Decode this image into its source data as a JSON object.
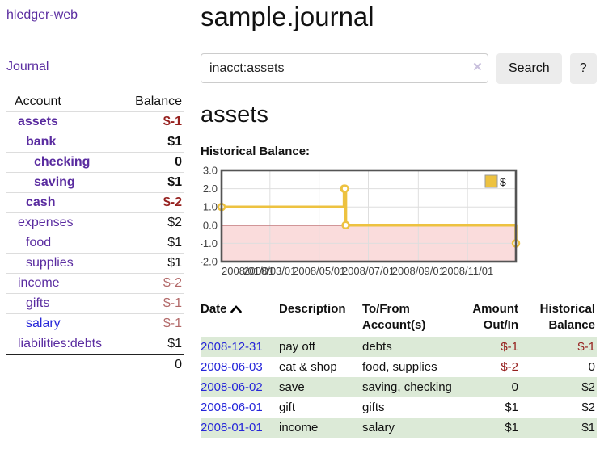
{
  "sidebar": {
    "brand": "hledger-web",
    "nav": [
      {
        "label": "Journal"
      }
    ],
    "accounts_table": {
      "headers": [
        "Account",
        "Balance"
      ],
      "rows": [
        {
          "name": "assets",
          "depth": 1,
          "bold": true,
          "link_color": "purple",
          "balance": "$-1",
          "balance_class": "dark-red"
        },
        {
          "name": "bank",
          "depth": 2,
          "bold": true,
          "link_color": "purple",
          "balance": "$1",
          "balance_class": "black"
        },
        {
          "name": "checking",
          "depth": 3,
          "bold": true,
          "link_color": "purple",
          "balance": "0",
          "balance_class": "black"
        },
        {
          "name": "saving",
          "depth": 3,
          "bold": true,
          "link_color": "purple",
          "balance": "$1",
          "balance_class": "black"
        },
        {
          "name": "cash",
          "depth": 2,
          "bold": true,
          "link_color": "purple",
          "balance": "$-2",
          "balance_class": "dark-red"
        },
        {
          "name": "expenses",
          "depth": 1,
          "bold": false,
          "link_color": "purple",
          "balance": "$2",
          "balance_class": "black"
        },
        {
          "name": "food",
          "depth": 2,
          "bold": false,
          "link_color": "purple",
          "balance": "$1",
          "balance_class": "black"
        },
        {
          "name": "supplies",
          "depth": 2,
          "bold": false,
          "link_color": "purple",
          "balance": "$1",
          "balance_class": "black"
        },
        {
          "name": "income",
          "depth": 1,
          "bold": false,
          "link_color": "purple",
          "balance": "$-2",
          "balance_class": "soft-red"
        },
        {
          "name": "gifts",
          "depth": 2,
          "bold": false,
          "link_color": "purple",
          "balance": "$-1",
          "balance_class": "soft-red"
        },
        {
          "name": "salary",
          "depth": 2,
          "bold": false,
          "link_color": "blue",
          "balance": "$-1",
          "balance_class": "soft-red"
        },
        {
          "name": "liabilities:debts",
          "depth": 1,
          "bold": false,
          "link_color": "purple",
          "balance": "$1",
          "balance_class": "black"
        }
      ],
      "total": "0"
    }
  },
  "header": {
    "title": "sample.journal"
  },
  "search": {
    "value": "inacct:assets",
    "clear_icon": "×",
    "button_label": "Search",
    "help_label": "?"
  },
  "account_page": {
    "heading": "assets",
    "chart_label": "Historical Balance:"
  },
  "chart_data": {
    "type": "line",
    "style": "steps",
    "title": "Historical Balance:",
    "series": [
      {
        "name": "$",
        "color": "#edc240",
        "points": [
          [
            "2008-01-01",
            1
          ],
          [
            "2008-06-01",
            2
          ],
          [
            "2008-06-02",
            2
          ],
          [
            "2008-06-03",
            0
          ],
          [
            "2008-12-31",
            -1
          ]
        ]
      }
    ],
    "xrange": [
      "2008-01-01",
      "2008-12-31"
    ],
    "ylim": [
      -2,
      3
    ],
    "yticks": [
      "3.0",
      "2.0",
      "1.0",
      "0.0",
      "-1.0",
      "-2.0"
    ],
    "xticks": [
      "2008/01/01",
      "2008/03/01",
      "2008/05/01",
      "2008/07/01",
      "2008/09/01",
      "2008/11/01"
    ],
    "grid": true,
    "legend": {
      "label": "$",
      "position": "top-right"
    },
    "negative_region_color": "#fadcdc",
    "zero_line_color": "#8d2029"
  },
  "register_table": {
    "headers": [
      "Date",
      "Description",
      "To/From Account(s)",
      "Amount Out/In",
      "Historical Balance"
    ],
    "rows": [
      {
        "date": "2008-12-31",
        "description": "pay off",
        "accounts": "debts",
        "amount": "$-1",
        "amount_neg": true,
        "balance": "$-1",
        "balance_neg": true
      },
      {
        "date": "2008-06-03",
        "description": "eat & shop",
        "accounts": "food, supplies",
        "amount": "$-2",
        "amount_neg": true,
        "balance": "0",
        "balance_neg": false
      },
      {
        "date": "2008-06-02",
        "description": "save",
        "accounts": "saving, checking",
        "amount": "0",
        "amount_neg": false,
        "balance": "$2",
        "balance_neg": false
      },
      {
        "date": "2008-06-01",
        "description": "gift",
        "accounts": "gifts",
        "amount": "$1",
        "amount_neg": false,
        "balance": "$2",
        "balance_neg": false
      },
      {
        "date": "2008-01-01",
        "description": "income",
        "accounts": "salary",
        "amount": "$1",
        "amount_neg": false,
        "balance": "$1",
        "balance_neg": false
      }
    ]
  },
  "colors": {
    "link_purple": "#5a2ca0",
    "link_blue": "#2626d9",
    "negative_strong": "#96211f",
    "negative_soft": "#b26868",
    "row_green": "#dcead7",
    "series_gold": "#edc240",
    "chart_border": "#545454",
    "gridline": "#dedede"
  }
}
